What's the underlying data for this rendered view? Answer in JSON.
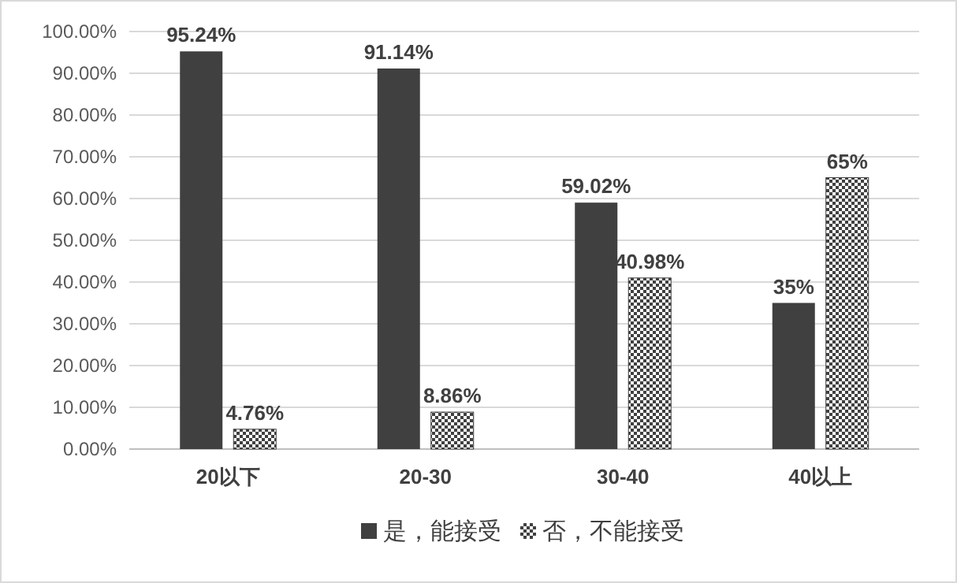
{
  "chart_data": {
    "type": "bar",
    "categories": [
      "20以下",
      "20-30",
      "30-40",
      "40以上"
    ],
    "series": [
      {
        "name": "是，能接受",
        "color": "#404040",
        "values": [
          95.24,
          91.14,
          59.02,
          35
        ],
        "value_labels": [
          "95.24%",
          "91.14%",
          "59.02%",
          "35%"
        ]
      },
      {
        "name": "否，不能接受",
        "color": "#404040",
        "values": [
          4.76,
          8.86,
          40.98,
          65
        ],
        "value_labels": [
          "4.76%",
          "8.86%",
          "40.98%",
          "65%"
        ]
      }
    ],
    "ylim": [
      0,
      100
    ],
    "yticks": [
      {
        "value": 0,
        "label": "0.00%"
      },
      {
        "value": 10,
        "label": "10.00%"
      },
      {
        "value": 20,
        "label": "20.00%"
      },
      {
        "value": 30,
        "label": "30.00%"
      },
      {
        "value": 40,
        "label": "40.00%"
      },
      {
        "value": 50,
        "label": "50.00%"
      },
      {
        "value": 60,
        "label": "60.00%"
      },
      {
        "value": 70,
        "label": "70.00%"
      },
      {
        "value": 80,
        "label": "80.00%"
      },
      {
        "value": 90,
        "label": "90.00%"
      },
      {
        "value": 100,
        "label": "100.00%"
      }
    ],
    "grid": "y",
    "legend": "bottom"
  }
}
